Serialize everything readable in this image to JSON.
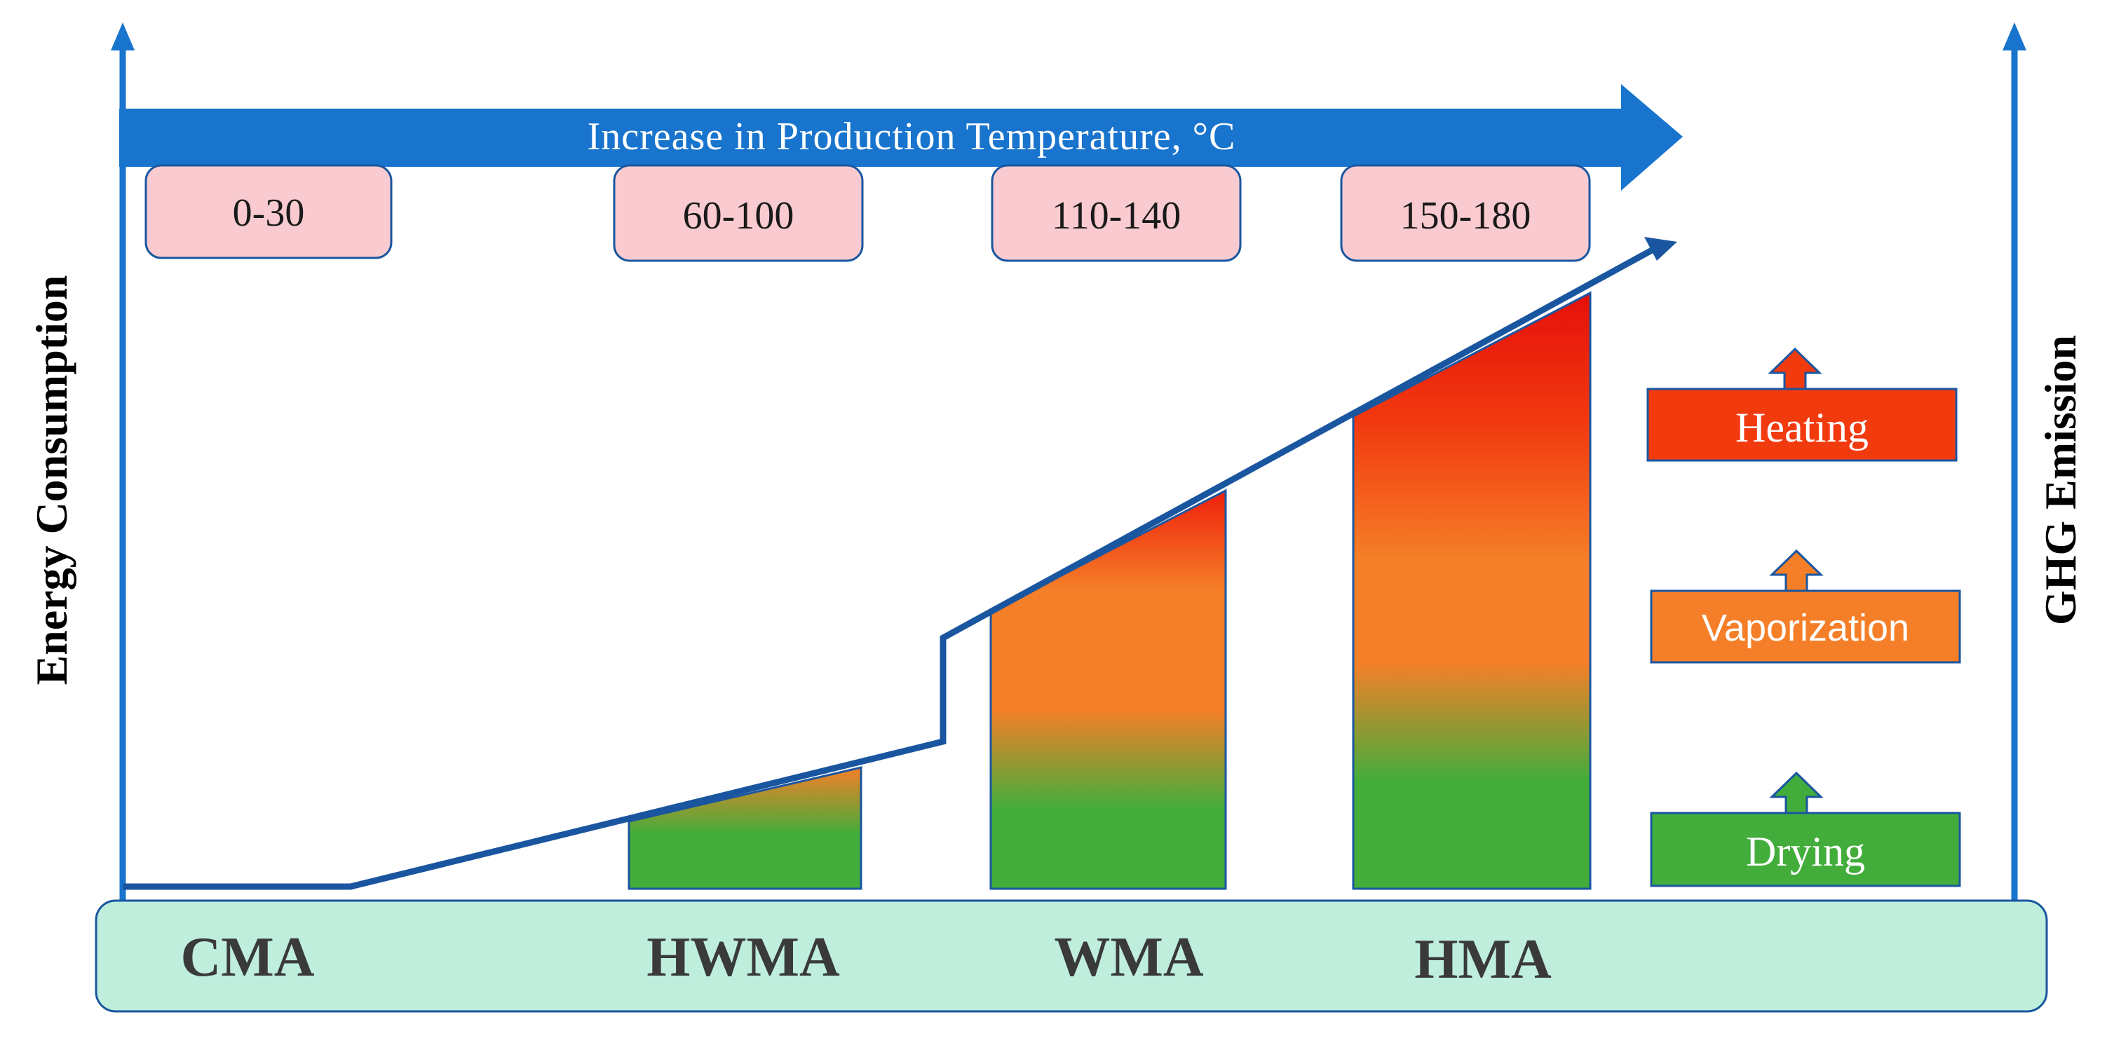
{
  "diagram": {
    "banner": "Increase in Production Temperature, °C",
    "left_axis_label": "Energy Consumption",
    "right_axis_label": "GHG Emission",
    "temperature_ranges": [
      "0-30",
      "60-100",
      "110-140",
      "150-180"
    ],
    "categories": [
      "CMA",
      "HWMA",
      "WMA",
      "HMA"
    ],
    "legend": [
      "Heating",
      "Vaporization",
      "Drying"
    ],
    "colors": {
      "axis_blue": "#1874cd",
      "line_blue": "#1a56a0",
      "temp_box_fill": "#f9cbd0",
      "category_bar": "#bfeedd",
      "heating": "#f23a0f",
      "vaporization": "#f57f28",
      "drying": "#42ad3b"
    }
  }
}
